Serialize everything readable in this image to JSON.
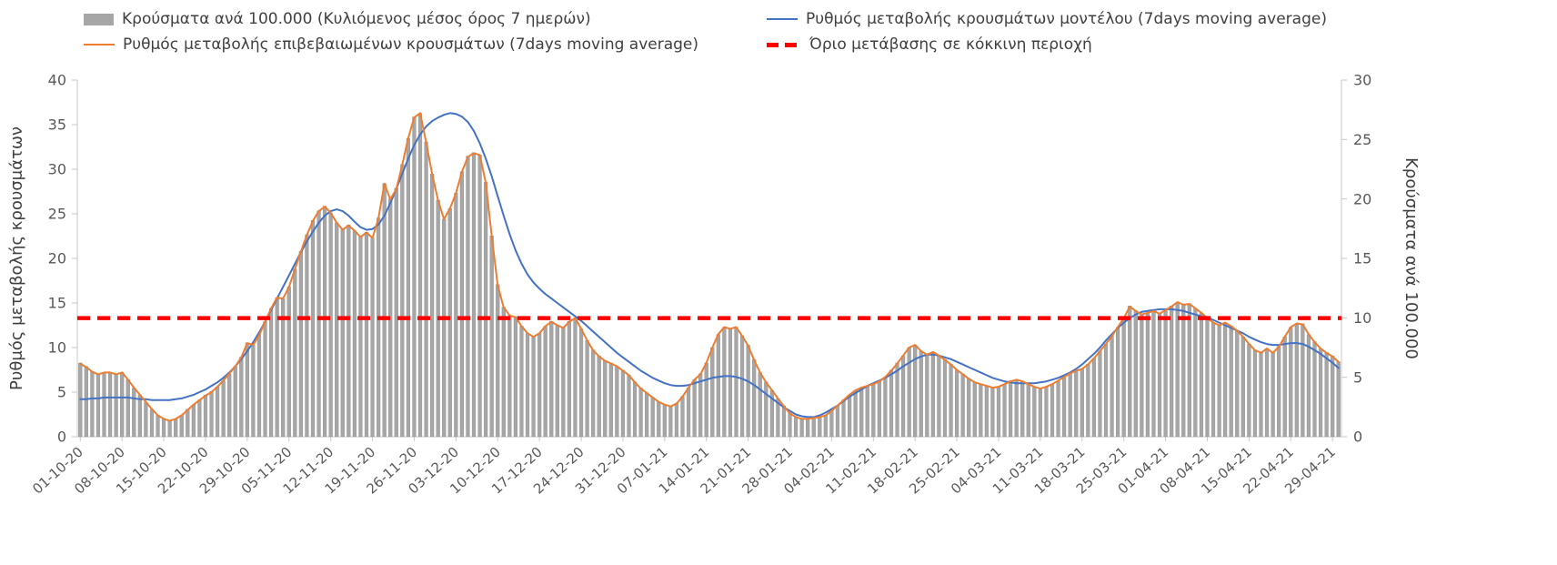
{
  "legend": {
    "items": [
      {
        "label": "Κρούσματα ανά 100.000 (Κυλιόμενος μέσος όρος 7 ημερών)",
        "swatch": "bar",
        "color": "#a6a6a6"
      },
      {
        "label": "Ρυθμός μεταβολής κρουσμάτων μοντέλου (7days moving average)",
        "swatch": "line",
        "color": "#4472c4"
      },
      {
        "label": "Ρυθμός μεταβολής επιβεβαιωμένων κρουσμάτων (7days moving average)",
        "swatch": "line",
        "color": "#ed7d31"
      },
      {
        "label": "Όριο μετάβασης σε κόκκινη περιοχή",
        "swatch": "dashed",
        "color": "#ff0000"
      }
    ]
  },
  "axes": {
    "left_title": "Ρυθμός μεταβολής κρουσμάτων",
    "right_title": "Κρούσματα ανά 100.000",
    "left_ticks": [
      0,
      5,
      10,
      15,
      20,
      25,
      30,
      35,
      40
    ],
    "right_ticks": [
      0,
      5,
      10,
      15,
      20,
      25,
      30
    ],
    "left_max": 40,
    "right_max": 30
  },
  "chart_data": {
    "type": "combo",
    "x_start_date": "01-10-20",
    "x_interval": "daily",
    "x_tick_every_days": 7,
    "x_tick_labels": [
      "01-10-20",
      "08-10-20",
      "15-10-20",
      "22-10-20",
      "29-10-20",
      "05-11-20",
      "12-11-20",
      "19-11-20",
      "26-11-20",
      "03-12-20",
      "10-12-20",
      "17-12-20",
      "24-12-20",
      "31-12-20",
      "07-01-21",
      "14-01-21",
      "21-01-21",
      "28-01-21",
      "04-02-21",
      "11-02-21",
      "18-02-21",
      "25-02-21",
      "04-03-21",
      "11-03-21",
      "18-03-21",
      "25-03-21",
      "01-04-21",
      "08-04-21",
      "15-04-21",
      "22-04-21",
      "29-04-21"
    ],
    "left_axis_range": [
      0,
      40
    ],
    "right_axis_range": [
      0,
      30
    ],
    "grid": false,
    "legend_position": "top",
    "series": [
      {
        "name": "Κρούσματα ανά 100.000 (Κυλιόμενος μέσος όρος 7 ημερών)",
        "type": "bar",
        "axis": "right",
        "color": "#a6a6a6",
        "values": [
          6.2,
          5.9,
          5.5,
          5.3,
          5.4,
          5.4,
          5.3,
          5.4,
          4.8,
          4.1,
          3.5,
          2.9,
          2.3,
          1.8,
          1.5,
          1.4,
          1.5,
          1.8,
          2.3,
          2.7,
          3.1,
          3.5,
          3.8,
          4.2,
          4.7,
          5.3,
          5.9,
          6.7,
          7.9,
          7.7,
          8.6,
          9.7,
          10.8,
          11.7,
          11.6,
          12.6,
          14.1,
          15.6,
          17.0,
          18.2,
          19.0,
          19.4,
          18.8,
          18.0,
          17.4,
          17.8,
          17.3,
          16.8,
          17.2,
          16.7,
          18.4,
          21.3,
          20.0,
          20.9,
          22.9,
          25.1,
          26.9,
          27.2,
          24.8,
          22.1,
          19.9,
          18.3,
          19.2,
          20.5,
          22.3,
          23.6,
          23.9,
          23.7,
          21.4,
          16.9,
          12.8,
          10.9,
          10.2,
          10.1,
          9.3,
          8.7,
          8.4,
          8.7,
          9.3,
          9.7,
          9.4,
          9.2,
          9.7,
          10.0,
          9.1,
          8.1,
          7.3,
          6.8,
          6.4,
          6.2,
          5.9,
          5.6,
          5.2,
          4.6,
          4.1,
          3.7,
          3.3,
          2.9,
          2.7,
          2.6,
          2.8,
          3.4,
          4.1,
          4.8,
          5.3,
          6.2,
          7.5,
          8.6,
          9.2,
          9.1,
          9.2,
          8.5,
          7.7,
          6.5,
          5.4,
          4.6,
          3.9,
          3.2,
          2.6,
          2.0,
          1.7,
          1.5,
          1.5,
          1.6,
          1.7,
          1.8,
          2.2,
          2.6,
          3.1,
          3.5,
          3.9,
          4.1,
          4.3,
          4.4,
          4.7,
          5.0,
          5.6,
          6.2,
          6.8,
          7.5,
          7.7,
          7.2,
          6.9,
          7.1,
          6.8,
          6.5,
          6.1,
          5.6,
          5.3,
          4.9,
          4.6,
          4.4,
          4.3,
          4.1,
          4.2,
          4.4,
          4.7,
          4.8,
          4.7,
          4.4,
          4.2,
          4.1,
          4.2,
          4.4,
          4.7,
          5.0,
          5.3,
          5.6,
          5.7,
          6.1,
          6.6,
          7.2,
          7.8,
          8.5,
          9.2,
          10.0,
          11.0,
          10.6,
          10.3,
          10.4,
          10.6,
          10.4,
          10.7,
          11.0,
          11.3,
          11.1,
          11.2,
          10.8,
          10.4,
          10.0,
          9.6,
          9.4,
          9.6,
          9.3,
          8.9,
          8.4,
          7.8,
          7.3,
          7.1,
          7.4,
          7.1,
          7.6,
          8.4,
          9.2,
          9.5,
          9.5,
          8.6,
          8.0,
          7.4,
          7.1,
          6.8,
          6.3
        ]
      },
      {
        "name": "Ρυθμός μεταβολής κρουσμάτων μοντέλου (7days moving average)",
        "type": "line",
        "axis": "left",
        "color": "#4472c4",
        "values": [
          4.2,
          4.2,
          4.3,
          4.3,
          4.4,
          4.4,
          4.4,
          4.4,
          4.4,
          4.3,
          4.2,
          4.2,
          4.1,
          4.1,
          4.1,
          4.1,
          4.2,
          4.3,
          4.5,
          4.7,
          5.0,
          5.3,
          5.7,
          6.1,
          6.6,
          7.2,
          7.9,
          8.7,
          9.6,
          10.6,
          11.7,
          12.9,
          14.2,
          15.5,
          16.8,
          18.1,
          19.4,
          20.7,
          21.9,
          23.0,
          24.0,
          24.8,
          25.3,
          25.5,
          25.3,
          24.8,
          24.1,
          23.5,
          23.2,
          23.3,
          23.8,
          24.8,
          26.2,
          27.8,
          29.5,
          31.2,
          32.7,
          33.9,
          34.8,
          35.4,
          35.8,
          36.1,
          36.3,
          36.2,
          35.9,
          35.3,
          34.3,
          32.9,
          31.2,
          29.2,
          27.0,
          24.8,
          22.7,
          20.9,
          19.4,
          18.2,
          17.3,
          16.6,
          16.0,
          15.5,
          15.0,
          14.5,
          14.0,
          13.5,
          13.0,
          12.4,
          11.8,
          11.2,
          10.6,
          10.0,
          9.4,
          8.9,
          8.4,
          7.9,
          7.4,
          7.0,
          6.6,
          6.3,
          6.0,
          5.8,
          5.7,
          5.7,
          5.8,
          6.0,
          6.2,
          6.4,
          6.6,
          6.7,
          6.8,
          6.8,
          6.7,
          6.5,
          6.2,
          5.8,
          5.3,
          4.8,
          4.3,
          3.8,
          3.3,
          2.9,
          2.5,
          2.3,
          2.2,
          2.2,
          2.4,
          2.7,
          3.1,
          3.5,
          4.0,
          4.5,
          4.9,
          5.3,
          5.7,
          6.0,
          6.3,
          6.6,
          7.0,
          7.4,
          7.9,
          8.3,
          8.7,
          9.0,
          9.2,
          9.2,
          9.1,
          8.9,
          8.7,
          8.4,
          8.1,
          7.8,
          7.5,
          7.2,
          6.9,
          6.6,
          6.4,
          6.2,
          6.1,
          6.0,
          6.0,
          6.0,
          6.0,
          6.1,
          6.2,
          6.4,
          6.6,
          6.9,
          7.2,
          7.6,
          8.1,
          8.7,
          9.3,
          10.0,
          10.8,
          11.5,
          12.2,
          12.8,
          13.3,
          13.7,
          14.0,
          14.1,
          14.2,
          14.3,
          14.3,
          14.3,
          14.2,
          14.1,
          13.9,
          13.7,
          13.5,
          13.3,
          13.1,
          12.8,
          12.5,
          12.2,
          11.9,
          11.6,
          11.2,
          10.9,
          10.6,
          10.4,
          10.3,
          10.3,
          10.4,
          10.5,
          10.5,
          10.4,
          10.1,
          9.7,
          9.3,
          8.8,
          8.3,
          7.7
        ]
      },
      {
        "name": "Ρυθμός μεταβολής επιβεβαιωμένων κρουσμάτων (7days moving average)",
        "type": "line",
        "axis": "left",
        "color": "#ed7d31",
        "values": [
          8.2,
          7.8,
          7.3,
          7.0,
          7.2,
          7.2,
          7.0,
          7.2,
          6.4,
          5.5,
          4.7,
          3.9,
          3.1,
          2.4,
          2.0,
          1.8,
          2.0,
          2.4,
          3.0,
          3.6,
          4.1,
          4.6,
          5.0,
          5.6,
          6.3,
          7.1,
          7.9,
          8.9,
          10.5,
          10.3,
          11.4,
          12.9,
          14.4,
          15.6,
          15.5,
          16.8,
          18.8,
          20.8,
          22.6,
          24.2,
          25.3,
          25.8,
          25.1,
          24.0,
          23.2,
          23.7,
          23.1,
          22.4,
          22.9,
          22.3,
          24.5,
          28.4,
          26.6,
          27.8,
          30.5,
          33.5,
          35.8,
          36.3,
          33.0,
          29.5,
          26.5,
          24.4,
          25.6,
          27.3,
          29.7,
          31.4,
          31.8,
          31.6,
          28.5,
          22.5,
          17.0,
          14.5,
          13.6,
          13.4,
          12.4,
          11.6,
          11.2,
          11.6,
          12.4,
          12.9,
          12.5,
          12.2,
          12.9,
          13.3,
          12.1,
          10.8,
          9.7,
          9.0,
          8.5,
          8.2,
          7.9,
          7.4,
          6.9,
          6.1,
          5.4,
          4.9,
          4.4,
          3.9,
          3.6,
          3.4,
          3.7,
          4.5,
          5.5,
          6.4,
          7.0,
          8.3,
          10.0,
          11.5,
          12.3,
          12.1,
          12.3,
          11.3,
          10.2,
          8.6,
          7.2,
          6.1,
          5.2,
          4.3,
          3.4,
          2.6,
          2.2,
          2.0,
          2.0,
          2.1,
          2.2,
          2.4,
          2.9,
          3.5,
          4.1,
          4.7,
          5.2,
          5.5,
          5.7,
          5.9,
          6.2,
          6.7,
          7.4,
          8.2,
          9.1,
          10.0,
          10.3,
          9.6,
          9.2,
          9.5,
          9.1,
          8.6,
          8.1,
          7.5,
          7.0,
          6.5,
          6.1,
          5.9,
          5.7,
          5.5,
          5.6,
          5.9,
          6.2,
          6.4,
          6.2,
          5.9,
          5.6,
          5.4,
          5.6,
          5.9,
          6.3,
          6.7,
          7.1,
          7.4,
          7.6,
          8.1,
          8.8,
          9.6,
          10.4,
          11.3,
          12.3,
          13.3,
          14.6,
          14.1,
          13.7,
          13.9,
          14.1,
          13.8,
          14.2,
          14.6,
          15.1,
          14.8,
          14.9,
          14.4,
          13.9,
          13.3,
          12.8,
          12.5,
          12.8,
          12.4,
          11.9,
          11.2,
          10.4,
          9.7,
          9.4,
          9.9,
          9.4,
          10.1,
          11.2,
          12.3,
          12.7,
          12.6,
          11.5,
          10.6,
          9.9,
          9.4,
          9.0,
          8.4
        ]
      },
      {
        "name": "Όριο μετάβασης σε κόκκινη περιοχή",
        "type": "threshold",
        "axis": "left",
        "color": "#ff0000",
        "value_left_axis": 13.3,
        "value_right_axis": 10
      }
    ]
  }
}
